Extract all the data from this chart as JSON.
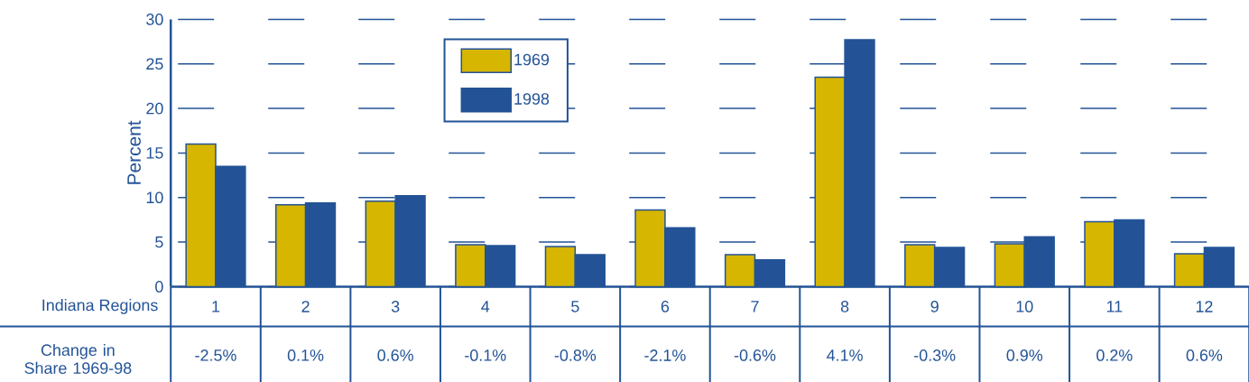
{
  "chart_data": {
    "type": "bar",
    "xlabel": "Indiana Regions",
    "ylabel": "Percent",
    "categories": [
      "1",
      "2",
      "3",
      "4",
      "5",
      "6",
      "7",
      "8",
      "9",
      "10",
      "11",
      "12"
    ],
    "series": [
      {
        "name": "1969",
        "color": "#d6b600",
        "values": [
          16.0,
          9.2,
          9.6,
          4.7,
          4.5,
          8.6,
          3.6,
          23.5,
          4.7,
          4.8,
          7.3,
          3.7
        ]
      },
      {
        "name": "1998",
        "color": "#235396",
        "values": [
          13.5,
          9.4,
          10.2,
          4.6,
          3.6,
          6.6,
          3.0,
          27.7,
          4.4,
          5.6,
          7.5,
          4.4
        ]
      }
    ],
    "ylim": [
      0,
      30
    ],
    "yticks": [
      0,
      5,
      10,
      15,
      20,
      25,
      30
    ],
    "grid": "y",
    "legend": "top",
    "annotations": [
      "Change in Share 1969-98",
      "-2.5%",
      "0.1%",
      "0.6%",
      "-0.1%",
      "-0.8%",
      "-2.1%",
      "-0.6%",
      "4.1%",
      "-0.3%",
      "0.9%",
      "0.2%",
      "0.6%"
    ]
  }
}
